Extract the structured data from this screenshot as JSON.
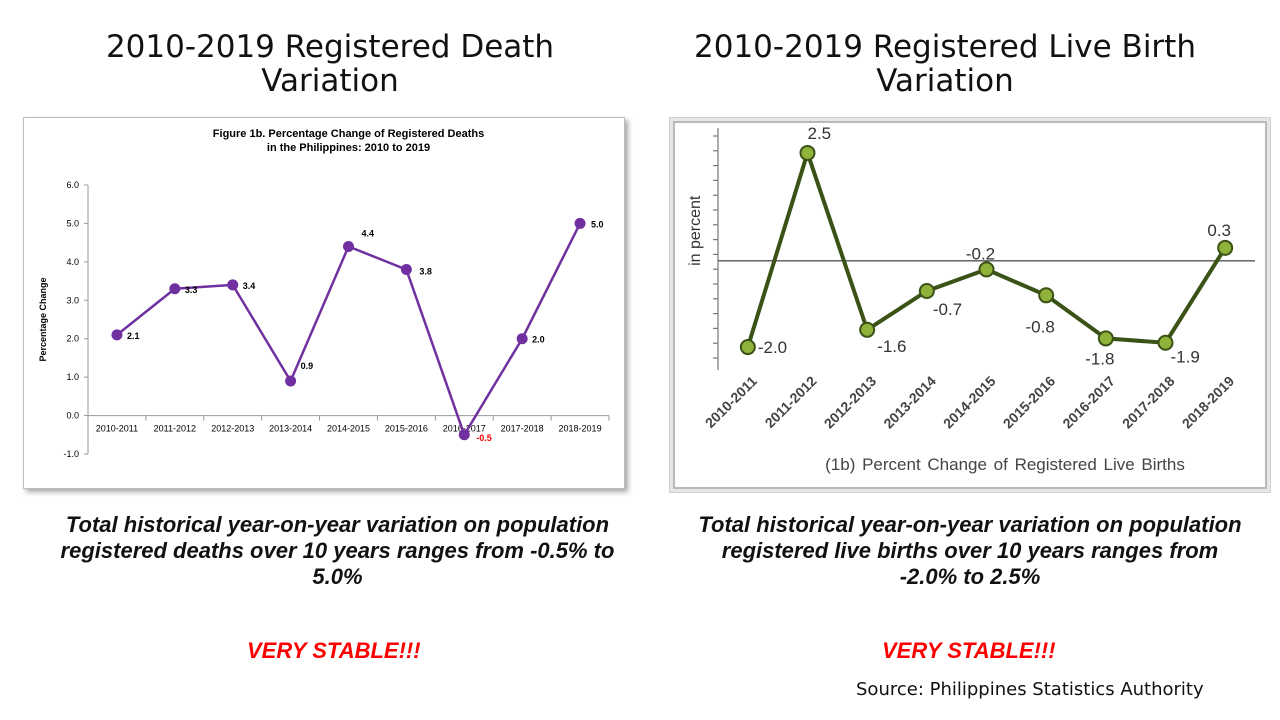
{
  "headings": {
    "left": "2010-2019 Registered Death Variation",
    "right": "2010-2019 Registered Live Birth Variation"
  },
  "summaries": {
    "left": "Total historical year-on-year variation on population registered deaths over 10 years ranges from -0.5% to 5.0%",
    "right": "Total historical year-on-year variation on population registered live births over 10 years ranges from -2.0% to 2.5%"
  },
  "stable_label": "VERY STABLE!!!",
  "source": "Source: Philippines Statistics Authority",
  "colors": {
    "deaths_line": "#7030a0",
    "births_line": "#3a5216",
    "births_marker": "#8fb23a",
    "stable": "#ff0000"
  },
  "chart_data": [
    {
      "type": "line",
      "title": "Figure 1b.  Percentage Change of Registered Deaths",
      "subtitle": "in the Philippines: 2010 to 2019",
      "xlabel": "",
      "ylabel": "Percentage Change",
      "categories": [
        "2010-2011",
        "2011-2012",
        "2012-2013",
        "2013-2014",
        "2014-2015",
        "2015-2016",
        "2016-2017",
        "2017-2018",
        "2018-2019"
      ],
      "values": [
        2.1,
        3.3,
        3.4,
        0.9,
        4.4,
        3.8,
        -0.5,
        2.0,
        5.0
      ],
      "data_labels": [
        "2.1",
        "3.3",
        "3.4",
        "0.9",
        "4.4",
        "3.8",
        "-0.5",
        "2.0",
        "5.0"
      ],
      "ylim": [
        -1.0,
        6.0
      ],
      "yticks": [
        "6.0",
        "5.0",
        "4.0",
        "3.0",
        "2.0",
        "1.0",
        "0.0",
        "-1.0"
      ],
      "grid": false,
      "legend": "none"
    },
    {
      "type": "line",
      "title": "(1b)  Percent Change of  Registered Live Births",
      "xlabel": "",
      "ylabel": "in percent",
      "categories": [
        "2010-2011",
        "2011-2012",
        "2012-2013",
        "2013-2014",
        "2014-2015",
        "2015-2016",
        "2016-2017",
        "2017-2018",
        "2018-2019"
      ],
      "values": [
        -2.0,
        2.5,
        -1.6,
        -0.7,
        -0.2,
        -0.8,
        -1.8,
        -1.9,
        0.3
      ],
      "data_labels": [
        "-2.0",
        "2.5",
        "-1.6",
        "-0.7",
        "-0.2",
        "-0.8",
        "-1.8",
        "-1.9",
        "0.3"
      ],
      "ylim": [
        -2.3,
        2.8
      ],
      "grid": false,
      "legend": "none"
    }
  ]
}
